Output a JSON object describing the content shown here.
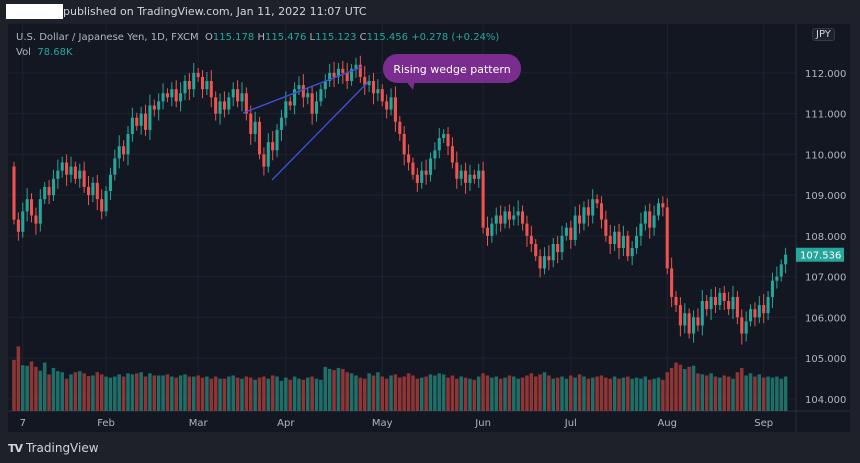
{
  "header": {
    "published": "published on TradingView.com, Jan 11, 2022 11:07 UTC"
  },
  "legend": {
    "symbol": "U.S. Dollar / Japanese Yen, 1D, FXCM",
    "o_label": "O",
    "o": "115.178",
    "h_label": "H",
    "h": "115.476",
    "l_label": "L",
    "l": "115.123",
    "c_label": "C",
    "c": "115.456",
    "change": "+0.278 (+0.24%)",
    "vol_label": "Vol",
    "vol": "78.68K"
  },
  "currency_badge": "JPY",
  "footer": {
    "logo_mark": "TV",
    "brand": "TradingView"
  },
  "annotation": {
    "text": "Rising wedge pattern",
    "color": "#7b2c8f"
  },
  "chart_data": {
    "type": "candlestick",
    "colors": {
      "up": "#26a69a",
      "down": "#ef5350",
      "wedge": "#3f51d8",
      "last_price": "#26a69a"
    },
    "ylim": [
      103.7,
      113.2
    ],
    "y_ticks": [
      "112.000",
      "111.000",
      "110.000",
      "109.000",
      "108.000",
      "107.000",
      "106.000",
      "105.000",
      "104.000"
    ],
    "y_tick_values": [
      112,
      111,
      110,
      109,
      108,
      107,
      106,
      105,
      104
    ],
    "x_tick_labels": [
      "7",
      "Feb",
      "Mar",
      "Apr",
      "May",
      "Jun",
      "Jul",
      "Aug",
      "Sep"
    ],
    "x_tick_index": [
      2,
      21,
      42,
      62,
      84,
      107,
      127,
      149,
      171
    ],
    "last_price": "107.536",
    "first_open": 109.7,
    "close": [
      108.4,
      108.1,
      108.6,
      108.9,
      108.5,
      108.3,
      108.9,
      109.2,
      109.0,
      109.4,
      109.6,
      109.8,
      109.5,
      109.7,
      109.4,
      109.6,
      109.2,
      109.0,
      109.3,
      108.9,
      108.6,
      109.1,
      109.5,
      109.9,
      110.2,
      110.0,
      110.5,
      110.9,
      110.7,
      111.0,
      110.6,
      111.2,
      111.1,
      111.3,
      111.5,
      111.4,
      111.6,
      111.3,
      111.5,
      111.8,
      111.6,
      112.0,
      111.9,
      111.6,
      111.8,
      111.4,
      111.0,
      111.3,
      111.1,
      111.4,
      111.6,
      111.3,
      111.5,
      111.0,
      110.5,
      110.8,
      110.0,
      109.7,
      110.3,
      110.1,
      110.6,
      110.9,
      111.3,
      111.2,
      111.6,
      111.7,
      111.4,
      111.5,
      111.0,
      111.3,
      111.6,
      111.8,
      112.0,
      111.9,
      112.1,
      112.0,
      111.8,
      112.1,
      112.2,
      111.9,
      111.7,
      111.8,
      111.5,
      111.6,
      111.3,
      111.1,
      111.4,
      110.8,
      110.5,
      110.0,
      109.8,
      109.5,
      109.3,
      109.6,
      109.5,
      109.9,
      110.1,
      110.4,
      110.5,
      110.2,
      109.8,
      109.4,
      109.6,
      109.3,
      109.5,
      109.4,
      109.6,
      108.2,
      108.0,
      108.3,
      108.5,
      108.3,
      108.6,
      108.4,
      108.5,
      108.6,
      108.3,
      108.0,
      107.8,
      107.5,
      107.2,
      107.5,
      107.4,
      107.8,
      107.6,
      108.0,
      108.2,
      107.9,
      108.5,
      108.3,
      108.7,
      108.5,
      108.9,
      108.8,
      108.4,
      108.0,
      107.8,
      108.1,
      107.7,
      108.0,
      107.5,
      107.7,
      108.0,
      108.3,
      108.6,
      108.2,
      108.5,
      108.8,
      108.7,
      107.2,
      106.5,
      106.3,
      105.8,
      106.1,
      105.6,
      106.0,
      105.8,
      106.4,
      106.2,
      106.5,
      106.3,
      106.6,
      106.4,
      106.2,
      106.5,
      106.0,
      105.6,
      105.9,
      106.2,
      106.0,
      106.3,
      106.1,
      106.5,
      106.9,
      107.0,
      107.3,
      107.536
    ],
    "volume": [
      95,
      120,
      85,
      84,
      92,
      82,
      75,
      90,
      68,
      80,
      74,
      72,
      60,
      68,
      72,
      74,
      70,
      65,
      66,
      72,
      68,
      64,
      62,
      64,
      68,
      64,
      70,
      68,
      70,
      72,
      64,
      70,
      66,
      66,
      66,
      68,
      64,
      62,
      66,
      68,
      64,
      64,
      66,
      62,
      64,
      60,
      64,
      60,
      60,
      64,
      66,
      62,
      60,
      64,
      62,
      58,
      62,
      64,
      60,
      66,
      64,
      56,
      62,
      58,
      64,
      60,
      58,
      62,
      64,
      60,
      58,
      82,
      78,
      76,
      80,
      78,
      72,
      70,
      66,
      62,
      60,
      70,
      66,
      72,
      64,
      60,
      66,
      68,
      62,
      64,
      70,
      66,
      60,
      62,
      64,
      68,
      66,
      70,
      68,
      62,
      66,
      60,
      64,
      62,
      60,
      58,
      64,
      70,
      66,
      62,
      64,
      60,
      62,
      66,
      64,
      60,
      62,
      66,
      70,
      64,
      68,
      72,
      66,
      60,
      62,
      64,
      60,
      66,
      62,
      68,
      64,
      60,
      62,
      64,
      66,
      62,
      60,
      64,
      60,
      62,
      64,
      60,
      62,
      60,
      64,
      58,
      60,
      62,
      58,
      72,
      80,
      90,
      86,
      78,
      82,
      84,
      70,
      68,
      66,
      70,
      64,
      62,
      66,
      64,
      60,
      72,
      80,
      66,
      70,
      64,
      68,
      62,
      64,
      62,
      64,
      60,
      64
    ]
  }
}
